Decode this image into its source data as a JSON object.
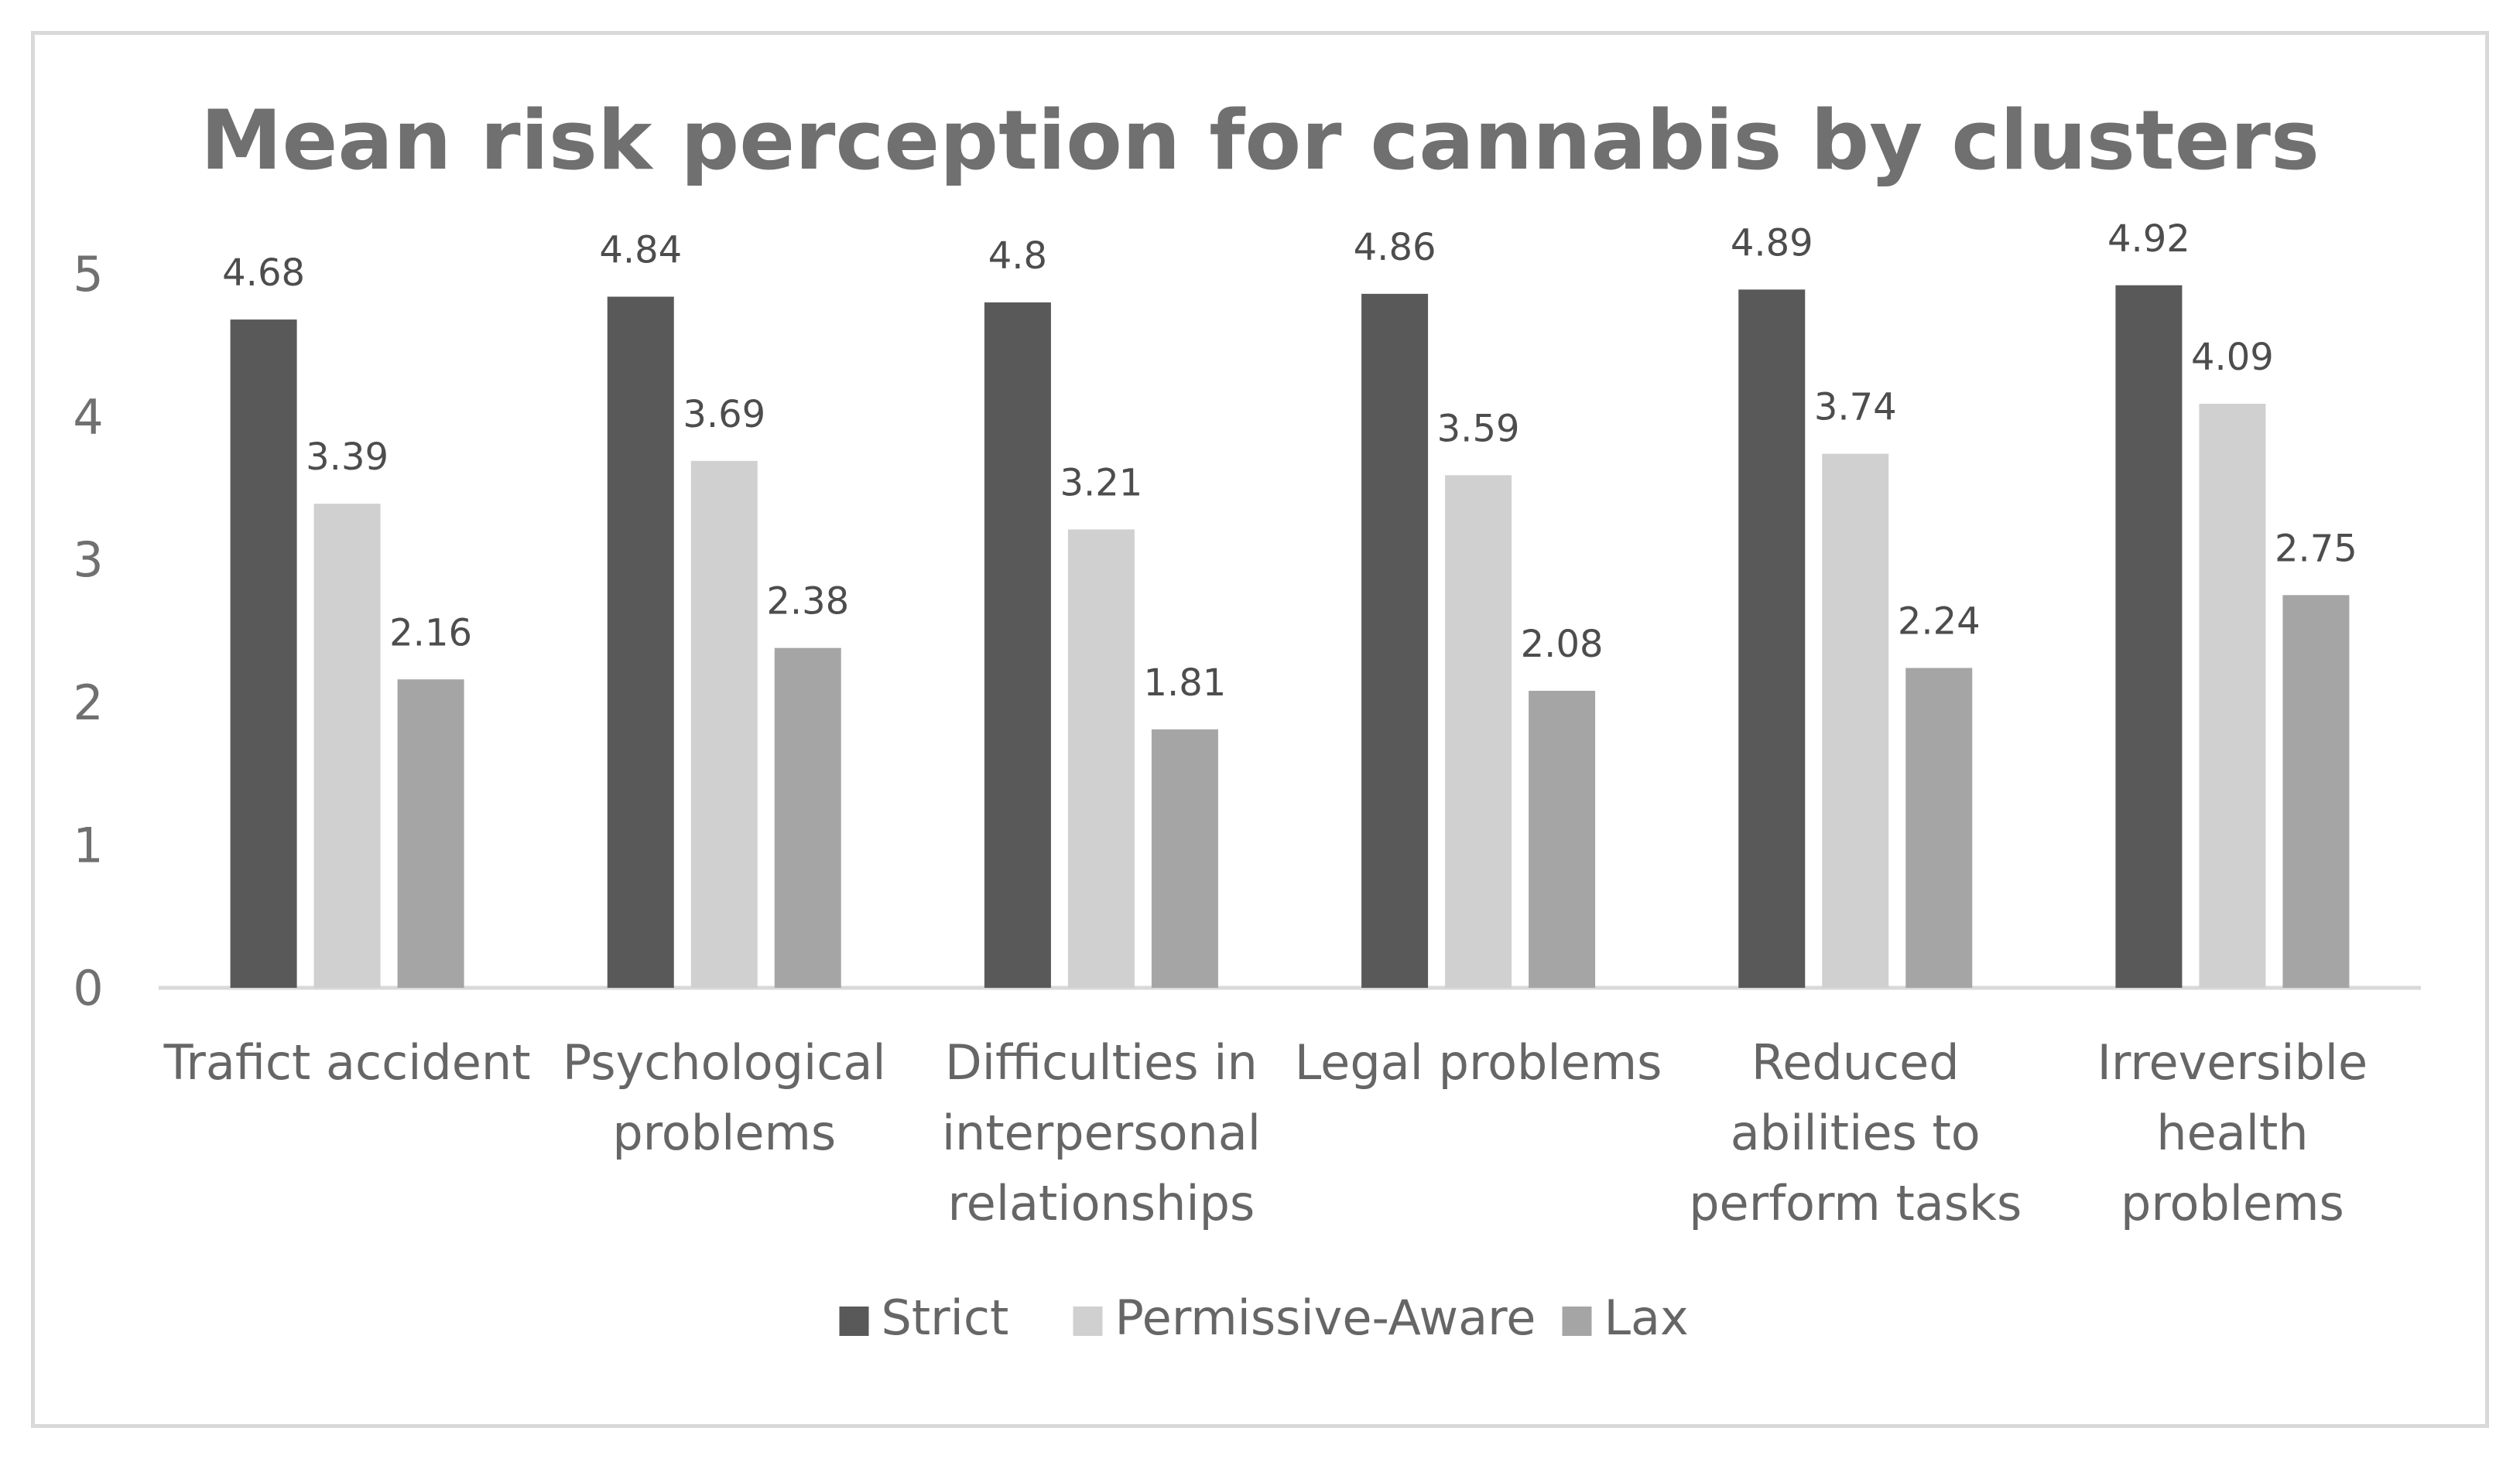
{
  "chart_data": {
    "type": "bar",
    "title": "Mean risk perception for cannabis by clusters",
    "xlabel": "",
    "ylabel": "",
    "ylim": [
      0,
      5
    ],
    "yticks": [
      "0",
      "1",
      "2",
      "3",
      "4",
      "5"
    ],
    "grid": false,
    "legend_position": "bottom",
    "categories": [
      [
        "Trafict accident"
      ],
      [
        "Psychological",
        "problems"
      ],
      [
        "Difficulties in",
        "interpersonal",
        "relationships"
      ],
      [
        "Legal problems"
      ],
      [
        "Reduced",
        "abilities to",
        "perform tasks"
      ],
      [
        "Irreversible",
        "health",
        "problems"
      ]
    ],
    "series": [
      {
        "name": "Strict",
        "color": "#595959",
        "values": [
          4.68,
          4.84,
          4.8,
          4.86,
          4.89,
          4.92
        ],
        "labels": [
          "4.68",
          "4.84",
          "4.8",
          "4.86",
          "4.89",
          "4.92"
        ]
      },
      {
        "name": "Permissive-Aware",
        "color": "#d0d0d0",
        "values": [
          3.39,
          3.69,
          3.21,
          3.59,
          3.74,
          4.09
        ],
        "labels": [
          "3.39",
          "3.69",
          "3.21",
          "3.59",
          "3.74",
          "4.09"
        ]
      },
      {
        "name": "Lax",
        "color": "#a5a5a5",
        "values": [
          2.16,
          2.38,
          1.81,
          2.08,
          2.24,
          2.75
        ],
        "labels": [
          "2.16",
          "2.38",
          "1.81",
          "2.08",
          "2.24",
          "2.75"
        ]
      }
    ]
  }
}
